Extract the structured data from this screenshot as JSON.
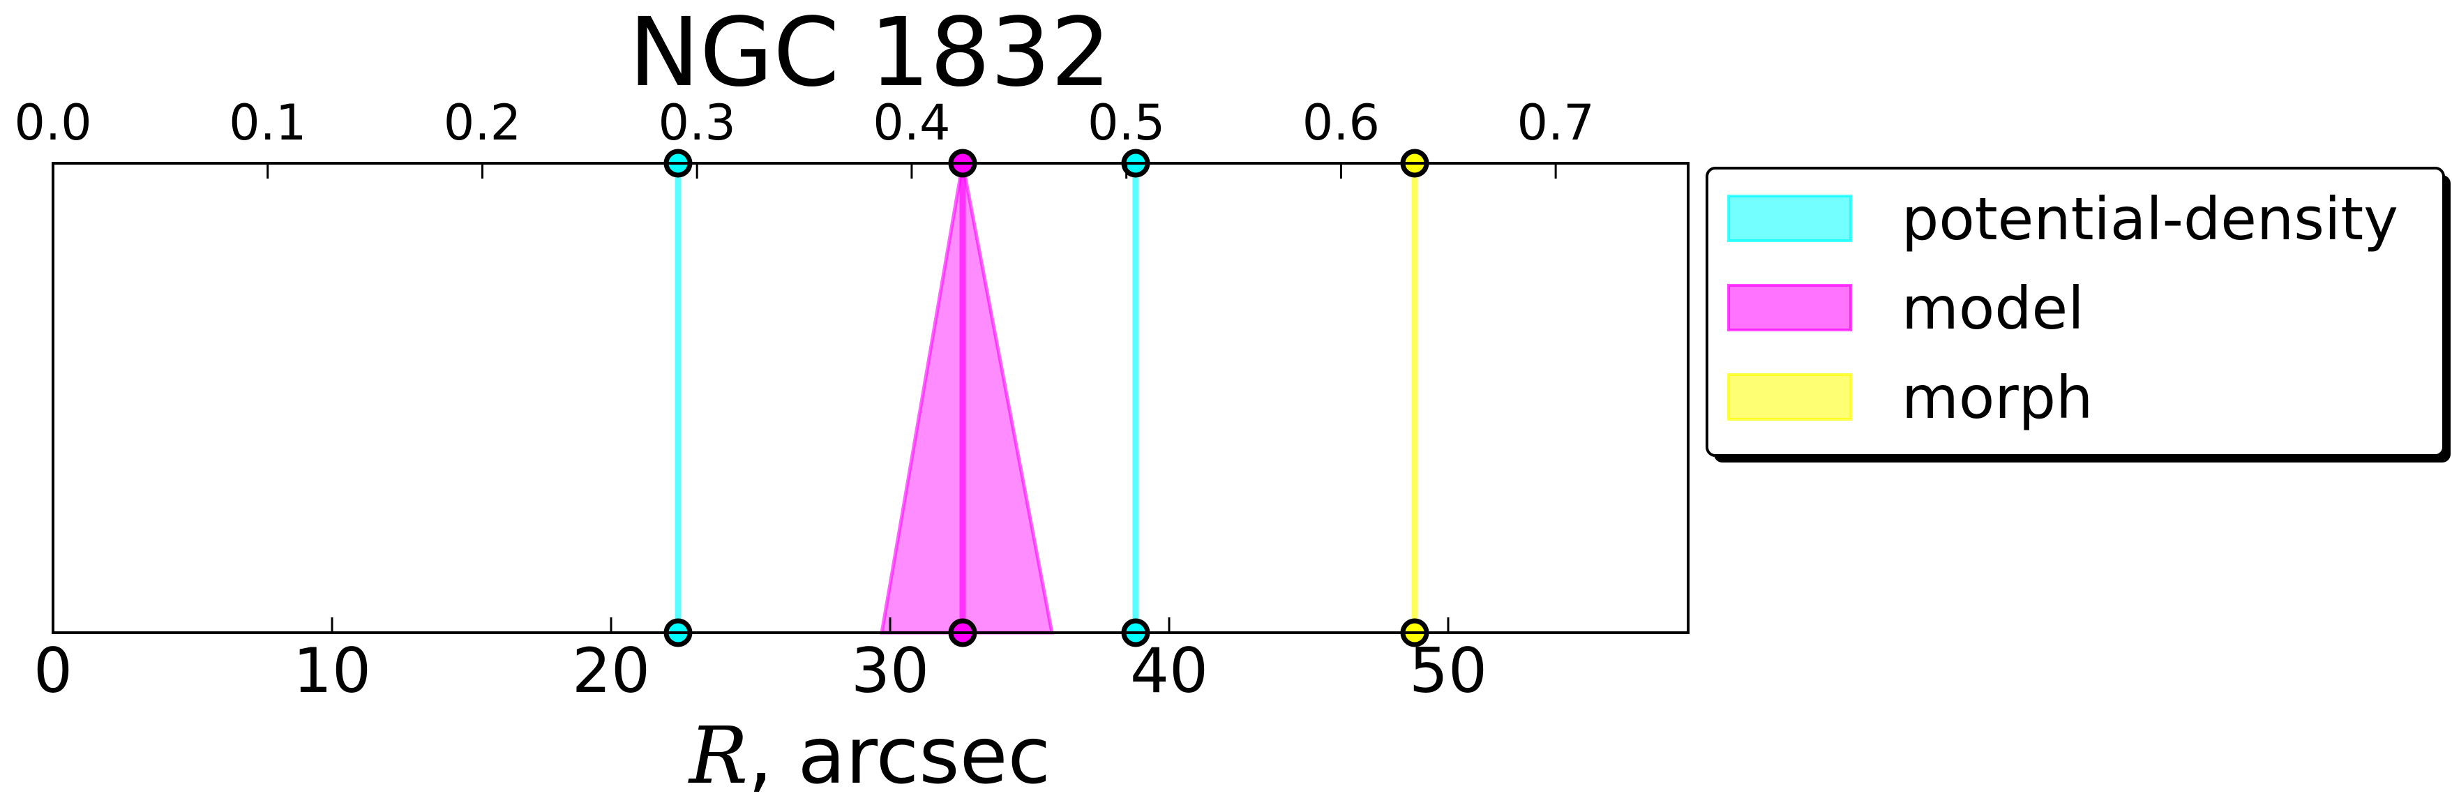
{
  "chart_data": {
    "type": "line",
    "title": "NGC 1832",
    "xlabel": {
      "variable": "R",
      "unit": ", arcsec"
    },
    "x_range": [
      0,
      58.6
    ],
    "x_ticks": [
      0,
      10,
      20,
      30,
      40,
      50
    ],
    "x_tick_labels": [
      "0",
      "10",
      "20",
      "30",
      "40",
      "50"
    ],
    "top_axis": {
      "ticks": [
        0.0,
        0.1,
        0.2,
        0.3,
        0.4,
        0.5,
        0.6,
        0.7
      ],
      "tick_labels": [
        "0.0",
        "0.1",
        "0.2",
        "0.3",
        "0.4",
        "0.5",
        "0.6",
        "0.7"
      ],
      "range": [
        0,
        0.7617
      ]
    },
    "y_ticks_shown": false,
    "grid": false,
    "legend_position": "outside-right",
    "series": [
      {
        "name": "potential-density",
        "color": "#00ffff",
        "kind": "vertical-lines",
        "x": [
          22.4,
          38.8
        ]
      },
      {
        "name": "model",
        "color": "#ff00ff",
        "kind": "vertical-line-with-band",
        "x": [
          32.6
        ],
        "band_bottom": [
          29.7,
          35.8
        ]
      },
      {
        "name": "morph",
        "color": "#ffff00",
        "kind": "vertical-lines",
        "x": [
          48.8
        ]
      }
    ]
  }
}
